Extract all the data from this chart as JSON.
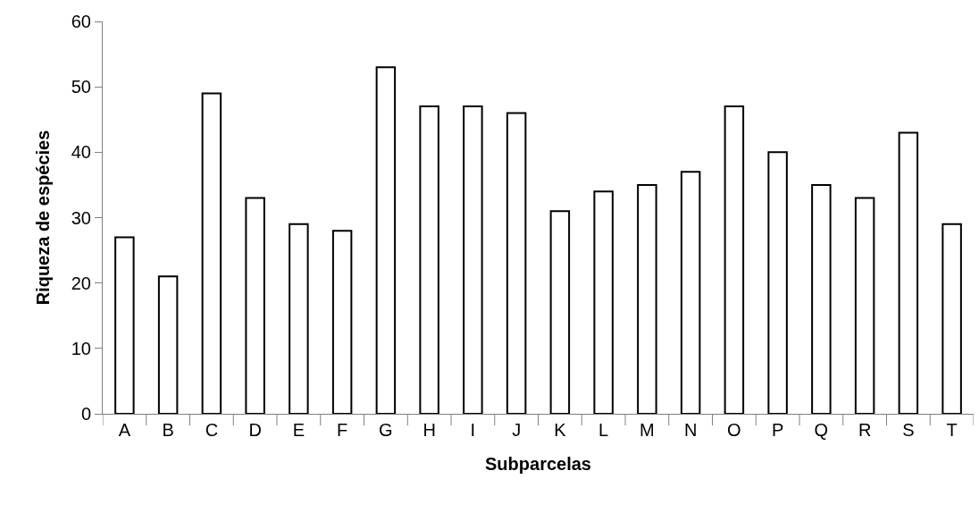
{
  "chart_data": {
    "type": "bar",
    "xlabel": "Subparcelas",
    "ylabel": "Riqueza de espécies",
    "categories": [
      "A",
      "B",
      "C",
      "D",
      "E",
      "F",
      "G",
      "H",
      "I",
      "J",
      "K",
      "L",
      "M",
      "N",
      "O",
      "P",
      "Q",
      "R",
      "S",
      "T"
    ],
    "values": [
      27,
      21,
      49,
      33,
      29,
      28,
      53,
      47,
      47,
      46,
      31,
      34,
      35,
      37,
      47,
      40,
      35,
      33,
      43,
      29
    ],
    "color": "#ffffff",
    "ylim": [
      0,
      60
    ],
    "yticks": [
      0,
      10,
      20,
      30,
      40,
      50,
      60
    ],
    "grid": false
  }
}
